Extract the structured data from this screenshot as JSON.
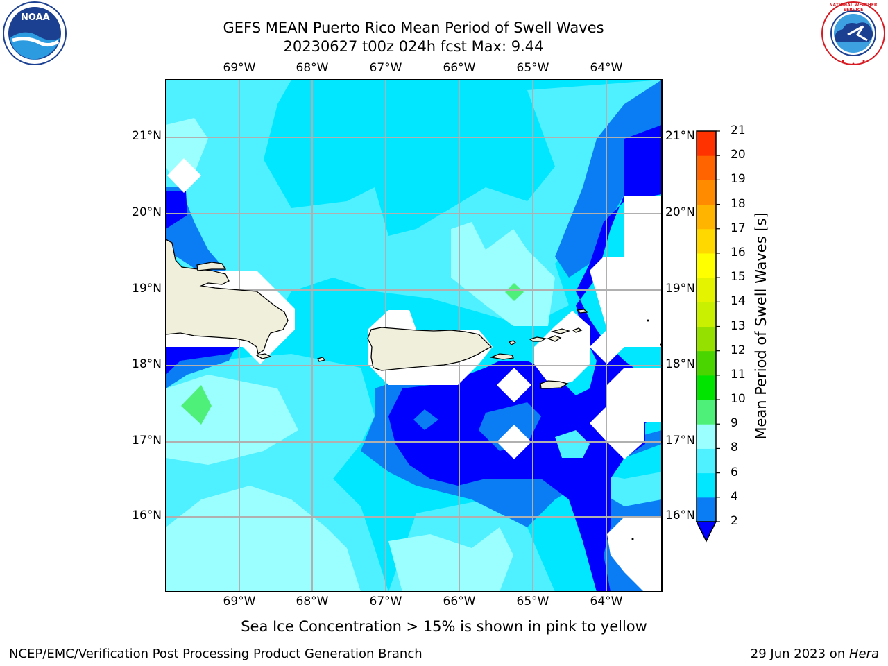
{
  "title": {
    "line1": "GEFS MEAN Puerto Rico Mean Period of Swell Waves",
    "line2": "20230627 t00z 024h fcst   Max: 9.44"
  },
  "map": {
    "lon_labels": [
      "69°W",
      "68°W",
      "67°W",
      "66°W",
      "65°W",
      "64°W"
    ],
    "lat_labels": [
      "21°N",
      "20°N",
      "19°N",
      "18°N",
      "17°N",
      "16°N"
    ],
    "features": [
      "Hispaniola",
      "Puerto Rico",
      "Virgin Islands",
      "St. Croix"
    ]
  },
  "colorbar": {
    "title": "Mean Period of Swell Waves [s]",
    "ticks": [
      "2",
      "4",
      "6",
      "8",
      "9",
      "10",
      "11",
      "12",
      "13",
      "14",
      "15",
      "16",
      "17",
      "18",
      "19",
      "20",
      "21"
    ],
    "colors": [
      "#0a7df5",
      "#00e7ff",
      "#4ff0ff",
      "#9cffff",
      "#4ff07a",
      "#00e400",
      "#4ad400",
      "#96e000",
      "#c8f000",
      "#e4f400",
      "#ffff00",
      "#ffd800",
      "#ffb400",
      "#ff8c00",
      "#ff6400",
      "#ff3200",
      "#ff0000"
    ],
    "extend_color": "#0000ff"
  },
  "subtitle": "Sea Ice Concentration > 15% is shown in pink to yellow",
  "footer": {
    "left": "NCEP/EMC/Verification Post Processing Product Generation Branch",
    "date": "29 Jun 2023 on ",
    "machine": "Hera"
  },
  "logos": {
    "noaa_text": "NOAA",
    "nws_text": "NATIONAL WEATHER SERVICE"
  }
}
